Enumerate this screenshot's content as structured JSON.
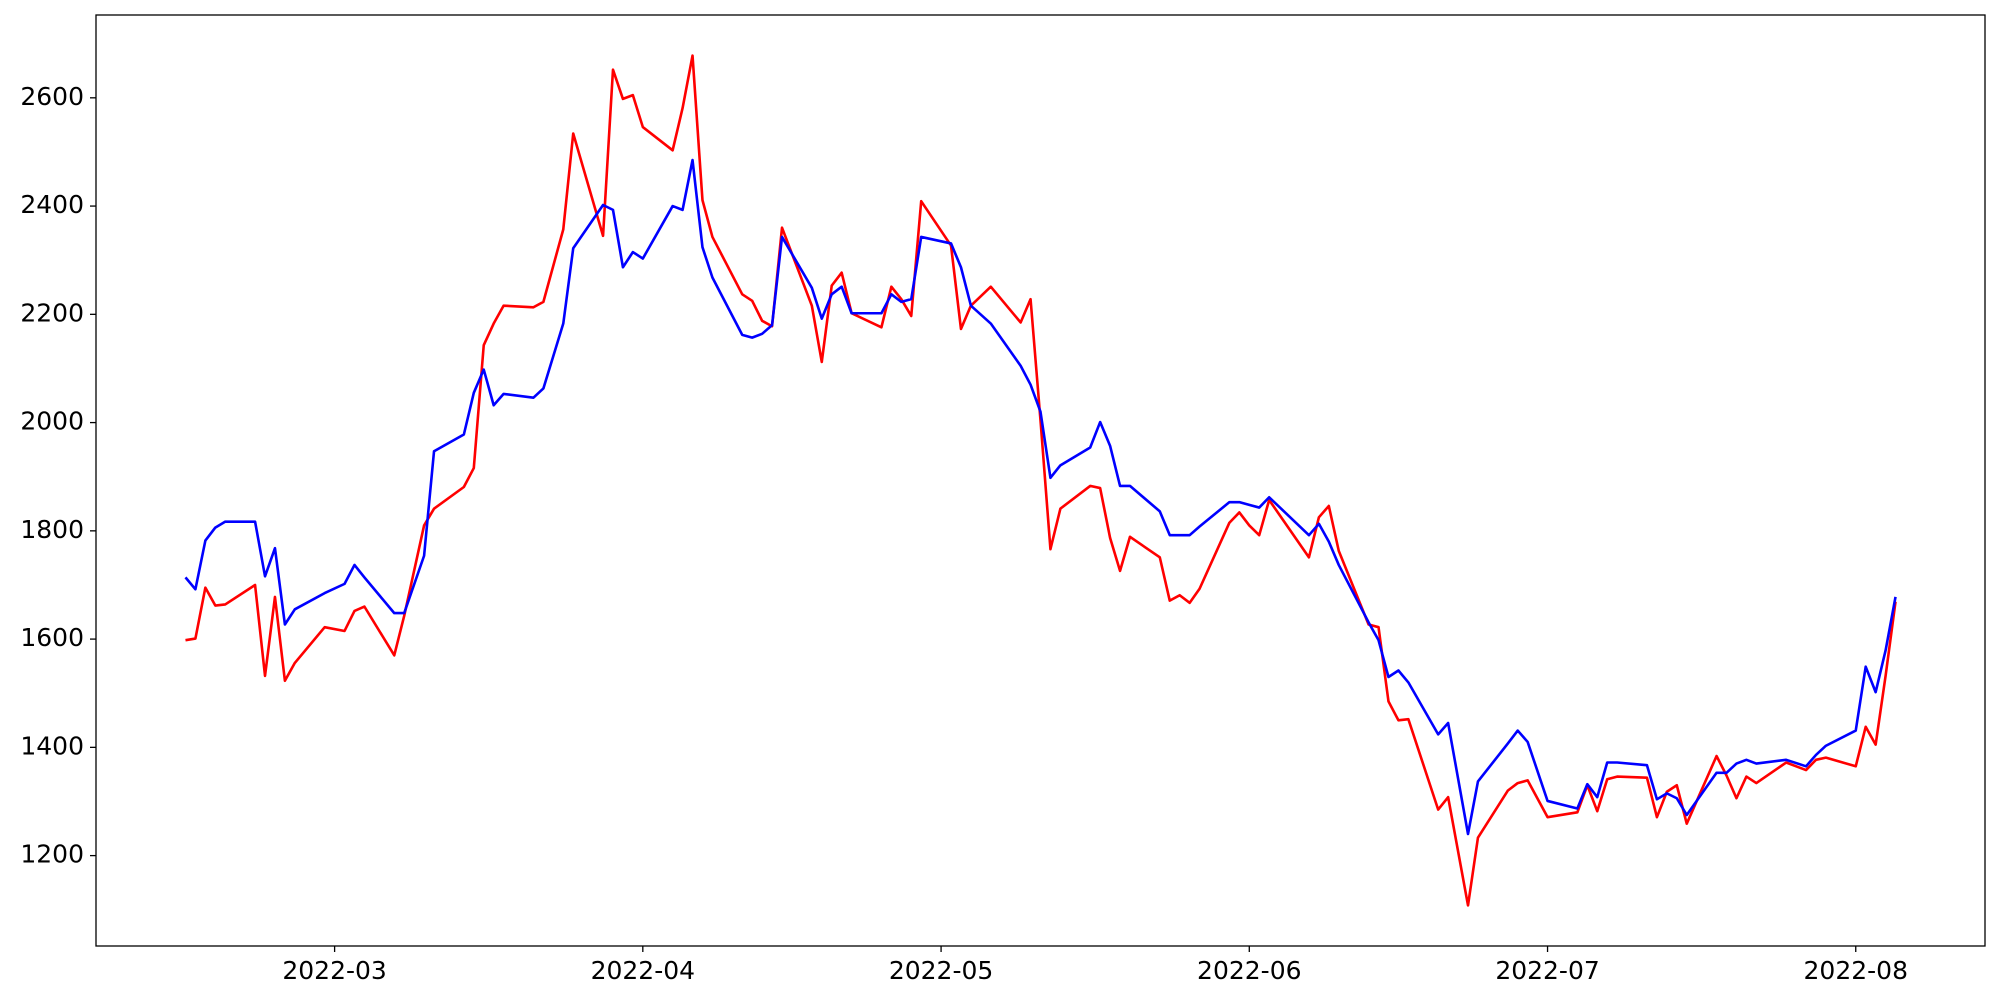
{
  "chart_data": {
    "type": "line",
    "x": [
      "2022-02-14",
      "2022-02-15",
      "2022-02-16",
      "2022-02-17",
      "2022-02-18",
      "2022-02-21",
      "2022-02-22",
      "2022-02-23",
      "2022-02-24",
      "2022-02-25",
      "2022-02-28",
      "2022-03-02",
      "2022-03-03",
      "2022-03-04",
      "2022-03-07",
      "2022-03-08",
      "2022-03-10",
      "2022-03-11",
      "2022-03-14",
      "2022-03-15",
      "2022-03-16",
      "2022-03-17",
      "2022-03-18",
      "2022-03-21",
      "2022-03-22",
      "2022-03-24",
      "2022-03-25",
      "2022-03-28",
      "2022-03-29",
      "2022-03-30",
      "2022-03-31",
      "2022-04-01",
      "2022-04-04",
      "2022-04-05",
      "2022-04-06",
      "2022-04-07",
      "2022-04-08",
      "2022-04-11",
      "2022-04-12",
      "2022-04-13",
      "2022-04-14",
      "2022-04-15",
      "2022-04-18",
      "2022-04-19",
      "2022-04-20",
      "2022-04-21",
      "2022-04-22",
      "2022-04-25",
      "2022-04-26",
      "2022-04-27",
      "2022-04-28",
      "2022-04-29",
      "2022-05-02",
      "2022-05-03",
      "2022-05-04",
      "2022-05-06",
      "2022-05-09",
      "2022-05-10",
      "2022-05-11",
      "2022-05-12",
      "2022-05-13",
      "2022-05-16",
      "2022-05-17",
      "2022-05-18",
      "2022-05-19",
      "2022-05-20",
      "2022-05-23",
      "2022-05-24",
      "2022-05-25",
      "2022-05-26",
      "2022-05-27",
      "2022-05-30",
      "2022-05-31",
      "2022-06-01",
      "2022-06-02",
      "2022-06-03",
      "2022-06-07",
      "2022-06-08",
      "2022-06-09",
      "2022-06-10",
      "2022-06-13",
      "2022-06-14",
      "2022-06-15",
      "2022-06-16",
      "2022-06-17",
      "2022-06-20",
      "2022-06-21",
      "2022-06-23",
      "2022-06-24",
      "2022-06-27",
      "2022-06-28",
      "2022-06-29",
      "2022-07-01",
      "2022-07-04",
      "2022-07-05",
      "2022-07-06",
      "2022-07-07",
      "2022-07-08",
      "2022-07-11",
      "2022-07-12",
      "2022-07-13",
      "2022-07-14",
      "2022-07-15",
      "2022-07-18",
      "2022-07-19",
      "2022-07-20",
      "2022-07-21",
      "2022-07-22",
      "2022-07-25",
      "2022-07-27",
      "2022-07-28",
      "2022-07-29",
      "2022-08-01",
      "2022-08-02",
      "2022-08-03",
      "2022-08-04",
      "2022-08-05"
    ],
    "series": [
      {
        "color": "#ff0000",
        "values": [
          1598,
          1601,
          1695,
          1662,
          1664,
          1700,
          1532,
          1678,
          1523,
          1556,
          1622,
          1615,
          1652,
          1660,
          1570,
          1643,
          1810,
          1841,
          1881,
          1916,
          2143,
          2183,
          2216,
          2213,
          2223,
          2357,
          2534,
          2345,
          2652,
          2598,
          2605,
          2546,
          2503,
          2581,
          2678,
          2411,
          2343,
          2237,
          2225,
          2188,
          2178,
          2360,
          2216,
          2112,
          2253,
          2277,
          2202,
          2176,
          2251,
          2228,
          2197,
          2409,
          2327,
          2173,
          2216,
          2251,
          2185,
          2228,
          2004,
          1766,
          1841,
          1883,
          1879,
          1787,
          1726,
          1789,
          1751,
          1671,
          1681,
          1667,
          1693,
          1815,
          1834,
          1810,
          1792,
          1857,
          1751,
          1825,
          1846,
          1763,
          1627,
          1622,
          1485,
          1450,
          1452,
          1285,
          1308,
          1108,
          1233,
          1320,
          1334,
          1339,
          1271,
          1280,
          1330,
          1282,
          1341,
          1346,
          1344,
          1271,
          1318,
          1330,
          1259,
          1384,
          1348,
          1306,
          1346,
          1334,
          1372,
          1358,
          1377,
          1381,
          1365,
          1438,
          1405,
          1532,
          1669
        ]
      },
      {
        "color": "#0000ff",
        "values": [
          1714,
          1692,
          1782,
          1806,
          1817,
          1817,
          1716,
          1768,
          1627,
          1655,
          1685,
          1702,
          1737,
          1714,
          1648,
          1648,
          1754,
          1947,
          1978,
          2055,
          2098,
          2032,
          2053,
          2046,
          2063,
          2183,
          2322,
          2402,
          2393,
          2287,
          2315,
          2303,
          2400,
          2393,
          2485,
          2324,
          2268,
          2162,
          2157,
          2164,
          2180,
          2343,
          2249,
          2192,
          2237,
          2251,
          2202,
          2202,
          2237,
          2223,
          2228,
          2343,
          2331,
          2287,
          2216,
          2183,
          2105,
          2070,
          2020,
          1898,
          1921,
          1954,
          2001,
          1957,
          1883,
          1883,
          1836,
          1792,
          1792,
          1792,
          1808,
          1853,
          1853,
          1848,
          1843,
          1862,
          1792,
          1813,
          1780,
          1737,
          1631,
          1598,
          1530,
          1542,
          1520,
          1424,
          1445,
          1240,
          1337,
          1407,
          1431,
          1410,
          1301,
          1287,
          1332,
          1308,
          1372,
          1372,
          1367,
          1304,
          1315,
          1306,
          1275,
          1353,
          1353,
          1370,
          1377,
          1370,
          1377,
          1365,
          1386,
          1403,
          1431,
          1549,
          1502,
          1579,
          1678
        ]
      }
    ],
    "xlim": [
      "2022-02-05",
      "2022-08-14"
    ],
    "xticks": [
      {
        "value": "2022-03-01",
        "label": "2022-03"
      },
      {
        "value": "2022-04-01",
        "label": "2022-04"
      },
      {
        "value": "2022-05-01",
        "label": "2022-05"
      },
      {
        "value": "2022-06-01",
        "label": "2022-06"
      },
      {
        "value": "2022-07-01",
        "label": "2022-07"
      },
      {
        "value": "2022-08-01",
        "label": "2022-08"
      }
    ],
    "ylim": [
      1033,
      2753
    ],
    "yticks": [
      1200,
      1400,
      1600,
      1800,
      2000,
      2200,
      2400,
      2600
    ],
    "grid": false
  }
}
